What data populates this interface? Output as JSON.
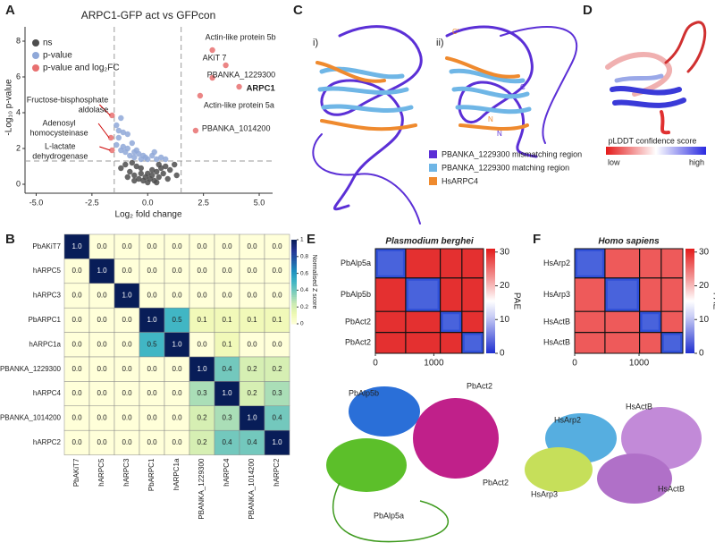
{
  "panel_labels": [
    "A",
    "B",
    "C",
    "D",
    "E",
    "F"
  ],
  "chart_data": [
    {
      "type": "scatter",
      "title": "ARPC1-GFP act vs GFPcon",
      "xlabel": "Log₂ fold change",
      "ylabel": "-Log₁₀ p-value",
      "xlim": [
        -5.5,
        5.6
      ],
      "ylim": [
        -0.5,
        8.8
      ],
      "xticks": [
        {
          "value": -5,
          "label": "-5.0"
        },
        {
          "value": -2.5,
          "label": "-2.5"
        },
        {
          "value": 0,
          "label": "0.0"
        },
        {
          "value": 2.5,
          "label": "2.5"
        },
        {
          "value": 5,
          "label": "5.0"
        }
      ],
      "yticks": [
        0,
        2,
        4,
        6,
        8
      ],
      "thresholds": {
        "x": [
          -1.5,
          1.5
        ],
        "y": 1.3
      },
      "series": [
        {
          "name": "ns",
          "color": "#4d4d4d",
          "x": [
            -1.2,
            -1,
            -0.8,
            -0.6,
            -0.5,
            -0.4,
            -0.3,
            -0.2,
            -0.1,
            0,
            0.1,
            0.2,
            0.3,
            0.4,
            0.5,
            0.6,
            0.7,
            0.8,
            1.0,
            1.2,
            -0.9,
            -0.7,
            0.2,
            0.5,
            -0.3,
            0.0,
            0.4,
            -0.6,
            0.9,
            1.3
          ],
          "values": [
            0.9,
            1.1,
            0.7,
            0.5,
            1.0,
            0.3,
            0.6,
            0.2,
            0.4,
            0.1,
            0.3,
            0.5,
            0.2,
            0.7,
            0.4,
            0.9,
            0.6,
            1.0,
            0.8,
            1.1,
            0.4,
            1.2,
            0.8,
            1.1,
            0.9,
            0.6,
            0.1,
            0.2,
            0.3,
            0.5
          ]
        },
        {
          "name": "p-value",
          "color": "#8fa8d8",
          "x": [
            -1.4,
            -1.3,
            -1.2,
            -1.1,
            -1.0,
            -0.9,
            -0.8,
            -0.7,
            -0.6,
            -0.5,
            -0.4,
            -0.3,
            -0.2,
            -0.1,
            0.0,
            0.2,
            0.4,
            0.6,
            0.8,
            -1.3,
            -1.1,
            -0.9,
            -0.6,
            -1.4,
            -1.2,
            0.3
          ],
          "values": [
            3.3,
            2.6,
            3.7,
            2.1,
            1.8,
            2.8,
            1.6,
            2.3,
            1.5,
            1.9,
            1.7,
            1.4,
            1.6,
            1.5,
            1.4,
            1.6,
            1.4,
            1.5,
            1.4,
            3.0,
            2.9,
            2.0,
            1.8,
            2.2,
            1.9,
            1.8
          ]
        },
        {
          "name": "p-value and log₂FC",
          "color": "#e87070",
          "x": [
            2.9,
            3.5,
            2.9,
            4.1,
            2.35,
            2.15,
            -1.6,
            -1.65,
            -1.6
          ],
          "values": [
            7.5,
            6.65,
            5.95,
            5.45,
            4.95,
            3.0,
            3.85,
            2.6,
            1.9
          ]
        }
      ],
      "annotations": [
        [
          "Actin-like protein 5b"
        ],
        [
          "AKiT 7"
        ],
        [
          "PBANKA_1229300"
        ],
        [
          "ARPC1"
        ],
        [
          "Actin-like protein 5a"
        ],
        [
          "PBANKA_1014200"
        ],
        [
          "Fructose-bisphosphate",
          "aldolase"
        ],
        [
          "Adenosyl",
          "homocysteinase"
        ],
        [
          "L-lactate",
          "dehydrogenase"
        ]
      ]
    },
    {
      "type": "heatmap",
      "rows": [
        "PbAKiT7",
        "hARPC5",
        "hARPC3",
        "PbARPC1",
        "hARPC1a",
        "PBANKA_1229300",
        "hARPC4",
        "PBANKA_1014200",
        "hARPC2"
      ],
      "columns": [
        "PbAKiT7",
        "hARPC5",
        "hARPC3",
        "PbARPC1",
        "hARPC1a",
        "PBANKA_1229300",
        "hARPC4",
        "PBANKA_1014200",
        "hARPC2"
      ],
      "values": [
        [
          1,
          0,
          0,
          0,
          0,
          0,
          0,
          0,
          0
        ],
        [
          0,
          1,
          0,
          0,
          0,
          0,
          0,
          0,
          0
        ],
        [
          0,
          0,
          1,
          0,
          0,
          0,
          0,
          0,
          0
        ],
        [
          0,
          0,
          0,
          1,
          0.5,
          0.1,
          0.1,
          0.1,
          0.1
        ],
        [
          0,
          0,
          0,
          0.5,
          1,
          0,
          0.1,
          0,
          0
        ],
        [
          0,
          0,
          0,
          0,
          0,
          1,
          0.4,
          0.2,
          0.2
        ],
        [
          0,
          0,
          0,
          0,
          0,
          0.3,
          1,
          0.2,
          0.3
        ],
        [
          0,
          0,
          0,
          0,
          0,
          0.2,
          0.3,
          1,
          0.4
        ],
        [
          0,
          0,
          0,
          0,
          0,
          0.2,
          0.4,
          0.4,
          1
        ]
      ],
      "value_labels": [
        [
          "1.0",
          "0.0",
          "0.0",
          "0.0",
          "0.0",
          "0.0",
          "0.0",
          "0.0",
          "0.0"
        ],
        [
          "0.0",
          "1.0",
          "0.0",
          "0.0",
          "0.0",
          "0.0",
          "0.0",
          "0.0",
          "0.0"
        ],
        [
          "0.0",
          "0.0",
          "1.0",
          "0.0",
          "0.0",
          "0.0",
          "0.0",
          "0.0",
          "0.0"
        ],
        [
          "0.0",
          "0.0",
          "0.0",
          "1.0",
          "0.5",
          "0.1",
          "0.1",
          "0.1",
          "0.1"
        ],
        [
          "0.0",
          "0.0",
          "0.0",
          "0.5",
          "1.0",
          "0.0",
          "0.1",
          "0.0",
          "0.0"
        ],
        [
          "0.0",
          "0.0",
          "0.0",
          "0.0",
          "0.0",
          "1.0",
          "0.4",
          "0.2",
          "0.2"
        ],
        [
          "0.0",
          "0.0",
          "0.0",
          "0.0",
          "0.0",
          "0.3",
          "1.0",
          "0.2",
          "0.3"
        ],
        [
          "0.0",
          "0.0",
          "0.0",
          "0.0",
          "0.0",
          "0.2",
          "0.3",
          "1.0",
          "0.4"
        ],
        [
          "0.0",
          "0.0",
          "0.0",
          "0.0",
          "0.0",
          "0.2",
          "0.4",
          "0.4",
          "1.0"
        ]
      ],
      "clim": [
        0,
        1
      ],
      "cticks": [
        0,
        0.2,
        0.4,
        0.6,
        0.8,
        1
      ],
      "clabel": "Normalised Z score"
    },
    {
      "type": "pae",
      "title": "Plasmodium berghei",
      "categories": [
        "PbAlp5a",
        "PbAlp5b",
        "PbAct2",
        "PbAct2"
      ],
      "xlim": [
        0,
        1850
      ],
      "xticks": [
        0,
        1000
      ],
      "clim": [
        0,
        31
      ],
      "cticks": [
        0,
        10,
        20,
        30
      ],
      "clabel": "PAE",
      "structure_labels": [
        "PbAlp5b",
        "PbAct2",
        "PbAct2",
        "PbAlp5a"
      ]
    },
    {
      "type": "pae",
      "title": "Homo sapiens",
      "categories": [
        "HsArp2",
        "HsArp3",
        "HsActB",
        "HsActB"
      ],
      "xlim": [
        0,
        1680
      ],
      "xticks": [
        0,
        1000
      ],
      "clim": [
        0,
        31
      ],
      "cticks": [
        0,
        10,
        20,
        30
      ],
      "clabel": "PAE",
      "structure_labels": [
        "HsArp2",
        "HsActB",
        "HsArp3",
        "HsActB"
      ]
    }
  ],
  "structure_c": {
    "subpanels": [
      "i)",
      "ii)"
    ],
    "termini": [
      "C'",
      "C",
      "N",
      "N"
    ],
    "legend": [
      {
        "name": "PBANKA_1229300 mismatching region",
        "color": "#5b2fd6"
      },
      {
        "name": "PBANKA_1229300 matching region",
        "color": "#6fb6e6"
      },
      {
        "name": "HsARPC4",
        "color": "#ef8a2e"
      }
    ]
  },
  "structure_d": {
    "title": "pLDDT confidence score",
    "low": "low",
    "high": "high"
  }
}
